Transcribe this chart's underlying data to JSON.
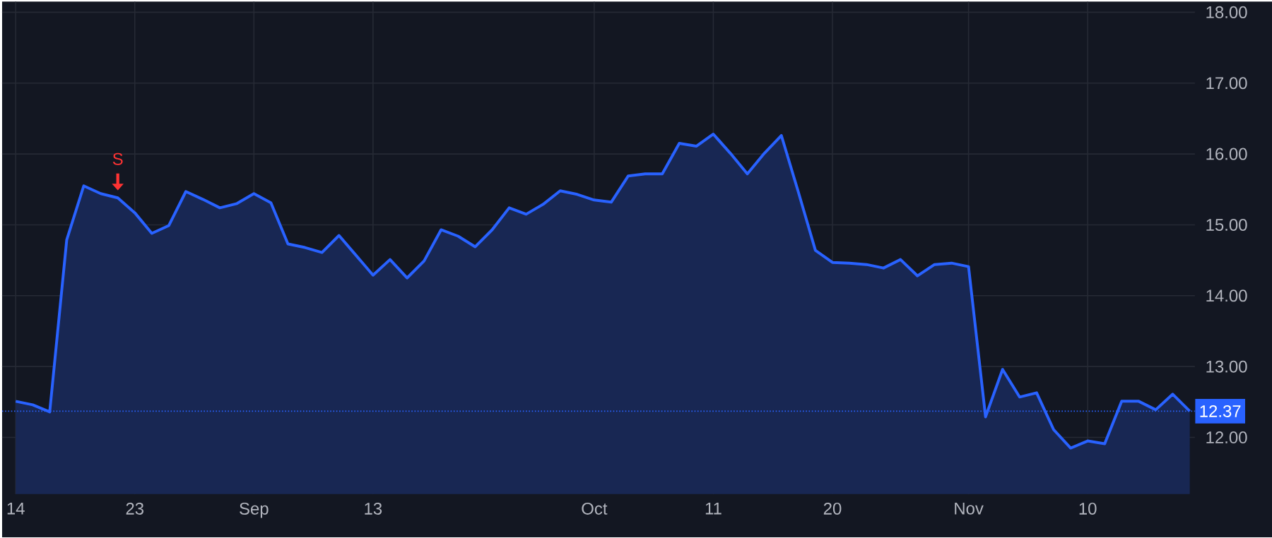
{
  "chart_data": {
    "type": "area",
    "categories": [
      "14",
      null,
      null,
      null,
      null,
      null,
      null,
      "23",
      null,
      null,
      null,
      null,
      null,
      null,
      "Sep",
      null,
      null,
      null,
      null,
      null,
      null,
      "13",
      null,
      null,
      null,
      null,
      null,
      null,
      null,
      null,
      null,
      null,
      null,
      null,
      "Oct",
      null,
      null,
      null,
      null,
      null,
      null,
      "11",
      null,
      null,
      null,
      null,
      null,
      null,
      "20",
      null,
      null,
      null,
      null,
      null,
      null,
      null,
      "Nov",
      null,
      null,
      null,
      null,
      null,
      null,
      "10",
      null,
      null,
      null,
      null,
      null,
      null
    ],
    "series": [
      {
        "color": "#2962ff",
        "values": [
          12.51,
          12.46,
          12.36,
          14.79,
          15.55,
          15.44,
          15.38,
          15.17,
          14.88,
          14.99,
          15.47,
          15.36,
          15.24,
          15.3,
          15.44,
          15.31,
          14.73,
          14.68,
          14.61,
          14.85,
          14.57,
          14.29,
          14.51,
          14.25,
          14.49,
          14.93,
          14.84,
          14.69,
          14.93,
          15.24,
          15.15,
          15.29,
          15.48,
          15.43,
          15.35,
          15.32,
          15.69,
          15.72,
          15.72,
          16.15,
          16.11,
          16.28,
          16.01,
          15.72,
          16.01,
          16.26,
          15.46,
          14.64,
          14.47,
          14.46,
          14.44,
          14.39,
          14.51,
          14.28,
          14.44,
          14.46,
          14.41,
          12.29,
          12.96,
          12.57,
          12.63,
          12.11,
          11.85,
          11.95,
          11.91,
          12.51,
          12.51,
          12.39,
          12.61,
          12.37
        ]
      }
    ],
    "ylim": [
      11.2,
      18.15
    ],
    "yticks": [
      {
        "value": 12,
        "label": "12.00"
      },
      {
        "value": 13,
        "label": "13.00"
      },
      {
        "value": 14,
        "label": "14.00"
      },
      {
        "value": 15,
        "label": "15.00"
      },
      {
        "value": 16,
        "label": "16.00"
      },
      {
        "value": 17,
        "label": "17.00"
      },
      {
        "value": 18,
        "label": "18.00"
      }
    ],
    "grid": true,
    "ref_lines": [
      {
        "axis": "y",
        "value": 12.37,
        "label": "12.37",
        "color": "#2962ff",
        "line_style": "dotted"
      }
    ],
    "annotations": [
      "S"
    ]
  }
}
